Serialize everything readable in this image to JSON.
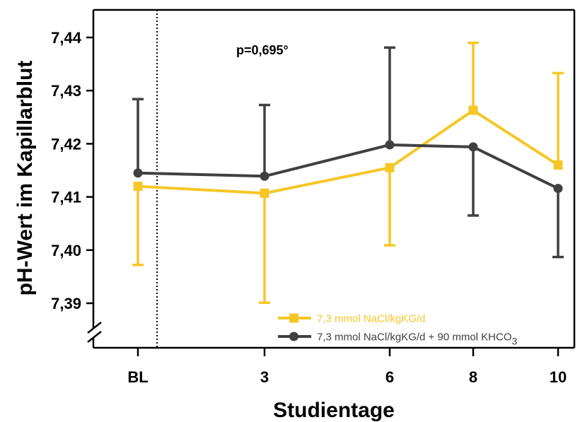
{
  "chart_data": {
    "type": "line",
    "xlabel": "Studientage",
    "ylabel": "pH-Wert im Kapillarblut",
    "categories": [
      "BL",
      "3",
      "6",
      "8",
      "10"
    ],
    "x": [
      0,
      3,
      6,
      8,
      10
    ],
    "ylim": [
      7.385,
      7.445
    ],
    "yticks": [
      "7,39",
      "7,40",
      "7,41",
      "7,42",
      "7,43",
      "7,44"
    ],
    "y_axis_break": true,
    "grid": false,
    "legend_position": "bottom-right",
    "annotation": "p=0,695°",
    "baseline_marker": "dotted vertical line after BL",
    "series": [
      {
        "name": "7,3 mmol NaCl/kgKG/d",
        "color": "#f5c726",
        "marker": "square",
        "values": [
          7.412,
          7.4107,
          7.4155,
          7.4263,
          7.416
        ],
        "error_upper": [
          null,
          null,
          null,
          7.439,
          7.4333
        ],
        "error_lower": [
          7.3972,
          7.3901,
          7.4009,
          null,
          null
        ]
      },
      {
        "name": "7,3 mmol NaCl/kgKG/d + 90 mmol KHCO",
        "name_subscript": "3",
        "color": "#404040",
        "marker": "circle",
        "values": [
          7.4145,
          7.4139,
          7.4198,
          7.4194,
          7.4116
        ],
        "error_upper": [
          7.4284,
          7.4273,
          7.4381,
          null,
          null
        ],
        "error_lower": [
          null,
          null,
          null,
          7.4065,
          7.3987
        ]
      }
    ]
  }
}
